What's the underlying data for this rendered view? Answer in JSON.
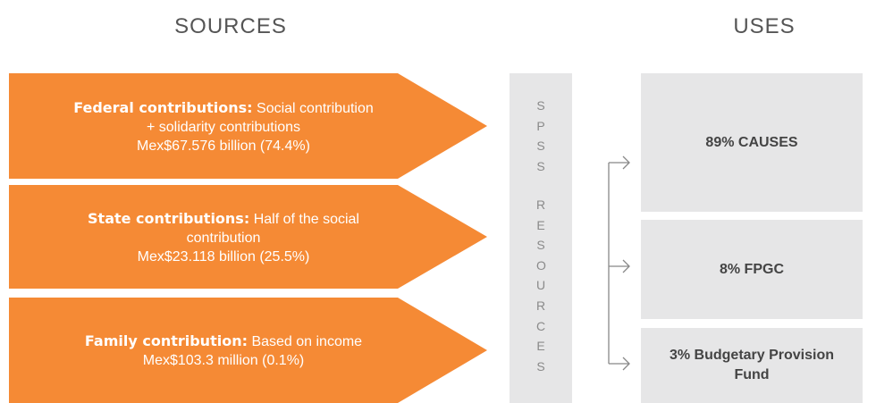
{
  "headings": {
    "sources": "SOURCES",
    "uses": "USES"
  },
  "sources": [
    {
      "label": "Federal contributions:",
      "text": [
        "Social contribution",
        "+ solidarity contributions"
      ],
      "amount": "Mex$67.576 billion (74.4%)"
    },
    {
      "label": "State contributions:",
      "text": [
        "Half of the social",
        "contribution"
      ],
      "amount": "Mex$23.118 billion (25.5%)"
    },
    {
      "label": "Family contribution:",
      "text": [
        "Based on income"
      ],
      "amount": "Mex$103.3 million (0.1%)"
    }
  ],
  "center": [
    "SPSS",
    "RESOURCES"
  ],
  "uses": [
    "89% CAUSES",
    "8% FPGC",
    "3% Budgetary Provision Fund"
  ]
}
